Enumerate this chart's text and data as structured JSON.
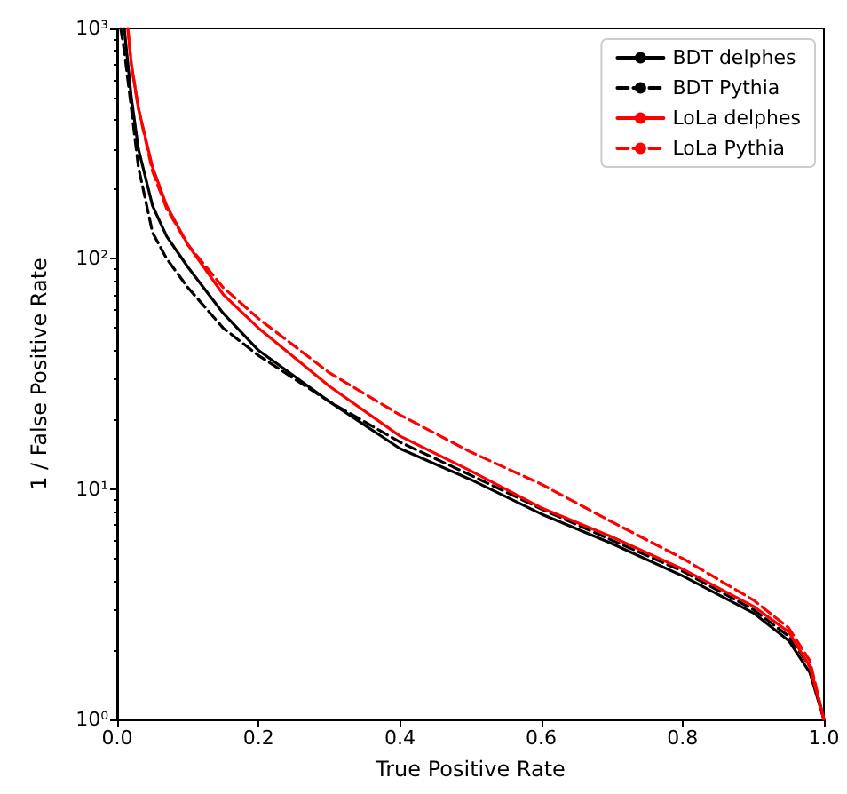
{
  "chart_data": {
    "type": "line",
    "xlabel": "True Positive Rate",
    "ylabel": "1 / False Positive Rate",
    "xlim": [
      0,
      1
    ],
    "ylim": [
      1,
      1000
    ],
    "log": "y",
    "grid": false,
    "legend": "top right",
    "marker": "none",
    "xticks": [
      {
        "value": 0,
        "label": "0.0"
      },
      0.2,
      0.4,
      0.6,
      0.8,
      {
        "value": 1,
        "label": "1.0"
      }
    ],
    "yticks": [
      {
        "value": 1,
        "label": "10⁰"
      },
      {
        "value": 10,
        "label": "10¹"
      },
      {
        "value": 100,
        "label": "10²"
      },
      {
        "value": 1000,
        "label": "10³"
      }
    ],
    "series": [
      {
        "name": "BDT delphes",
        "color": "#000000",
        "line_style": "solid",
        "x": [
          0.01,
          0.02,
          0.03,
          0.05,
          0.07,
          0.1,
          0.15,
          0.2,
          0.3,
          0.4,
          0.5,
          0.6,
          0.7,
          0.8,
          0.9,
          0.95,
          0.98,
          1
        ],
        "values": [
          1000,
          500,
          300,
          170,
          125,
          92,
          58,
          40,
          24,
          15,
          11,
          7.8,
          5.8,
          4.2,
          2.9,
          2.2,
          1.6,
          1
        ]
      },
      {
        "name": "BDT Pythia",
        "color": "#000000",
        "line_style": "dashed",
        "x": [
          0.005,
          0.01,
          0.02,
          0.03,
          0.05,
          0.07,
          0.1,
          0.15,
          0.2,
          0.3,
          0.4,
          0.5,
          0.6,
          0.7,
          0.8,
          0.9,
          0.95,
          0.98,
          1
        ],
        "values": [
          1000,
          800,
          450,
          250,
          130,
          100,
          75,
          50,
          38,
          24,
          16,
          11.5,
          8.2,
          6,
          4.4,
          3,
          2.3,
          1.7,
          1
        ]
      },
      {
        "name": "LoLa delphes",
        "color": "#ff0000",
        "line_style": "solid",
        "x": [
          0.015,
          0.02,
          0.03,
          0.05,
          0.07,
          0.1,
          0.15,
          0.2,
          0.3,
          0.4,
          0.5,
          0.6,
          0.7,
          0.8,
          0.9,
          0.95,
          0.98,
          1
        ],
        "values": [
          1000,
          700,
          450,
          250,
          170,
          115,
          70,
          50,
          28,
          17,
          12,
          8.3,
          6.2,
          4.5,
          3.1,
          2.4,
          1.7,
          1
        ]
      },
      {
        "name": "LoLa Pythia",
        "color": "#ff0000",
        "line_style": "dashed",
        "x": [
          0.015,
          0.02,
          0.03,
          0.05,
          0.07,
          0.1,
          0.15,
          0.2,
          0.3,
          0.4,
          0.5,
          0.6,
          0.7,
          0.8,
          0.9,
          0.95,
          0.98,
          1
        ],
        "values": [
          1000,
          700,
          450,
          240,
          165,
          115,
          75,
          55,
          32,
          21,
          14.5,
          10.5,
          7.2,
          5,
          3.3,
          2.5,
          1.8,
          1
        ]
      }
    ]
  }
}
